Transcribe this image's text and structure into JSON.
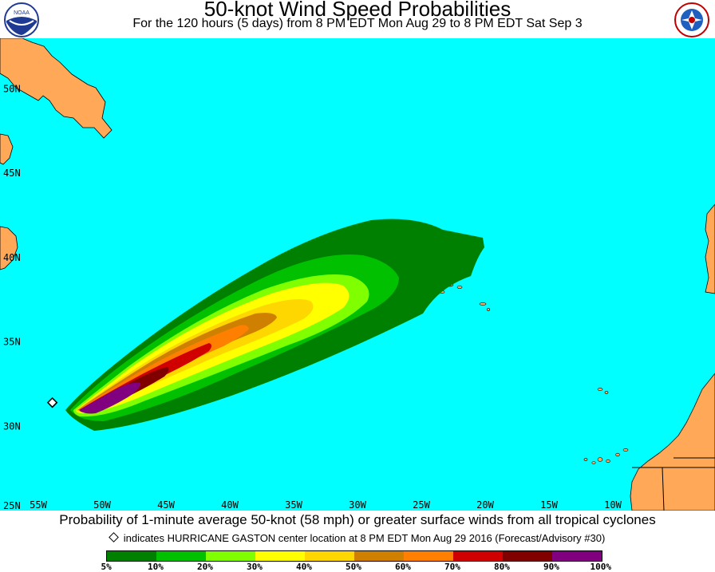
{
  "header": {
    "title": "50-knot Wind Speed Probabilities",
    "subtitle": "For the 120 hours (5 days) from 8 PM EDT Mon Aug 29 to 8 PM EDT Sat Sep 3",
    "left_logo": "noaa-logo",
    "right_logo": "nws-logo"
  },
  "map": {
    "projection": "lat-lon",
    "lat_range": [
      25,
      53
    ],
    "lon_range": [
      -58,
      -2
    ],
    "lat_labels": [
      "50N",
      "45N",
      "40N",
      "35N",
      "30N",
      "25N"
    ],
    "lat_values": [
      50,
      45,
      40,
      35,
      30,
      25
    ],
    "lon_labels": [
      "55W",
      "50W",
      "45W",
      "40W",
      "35W",
      "30W",
      "25W",
      "20W",
      "15W",
      "10W"
    ],
    "lon_values": [
      -55,
      -50,
      -45,
      -40,
      -35,
      -30,
      -25,
      -20,
      -15,
      -10
    ],
    "colors": {
      "ocean": "#00ffff",
      "land": "#ffa858",
      "coast": "#000000"
    },
    "storm_marker": {
      "name": "HURRICANE GASTON",
      "lat": 31.4,
      "lon": -53.9,
      "icon": "diamond-marker-icon"
    },
    "probability_contours": [
      {
        "min_pct": 5,
        "color": "#008000"
      },
      {
        "min_pct": 10,
        "color": "#00c000"
      },
      {
        "min_pct": 20,
        "color": "#80ff00"
      },
      {
        "min_pct": 30,
        "color": "#ffff00"
      },
      {
        "min_pct": 40,
        "color": "#ffd700"
      },
      {
        "min_pct": 50,
        "color": "#d08000"
      },
      {
        "min_pct": 60,
        "color": "#ff8000"
      },
      {
        "min_pct": 70,
        "color": "#d00000"
      },
      {
        "min_pct": 80,
        "color": "#800000"
      },
      {
        "min_pct": 90,
        "color": "#800080"
      }
    ]
  },
  "caption": "Probability of 1-minute average 50-knot (58 mph) or greater surface winds from all tropical cyclones",
  "marker_note": "indicates HURRICANE GASTON center location at 8 PM EDT Mon Aug 29 2016 (Forecast/Advisory #30)",
  "legend": {
    "colors": [
      "#008000",
      "#00c000",
      "#80ff00",
      "#ffff00",
      "#ffd700",
      "#d08000",
      "#ff8000",
      "#d00000",
      "#800000",
      "#800080"
    ],
    "labels": [
      "5%",
      "10%",
      "20%",
      "30%",
      "40%",
      "50%",
      "60%",
      "70%",
      "80%",
      "90%",
      "100%"
    ]
  }
}
